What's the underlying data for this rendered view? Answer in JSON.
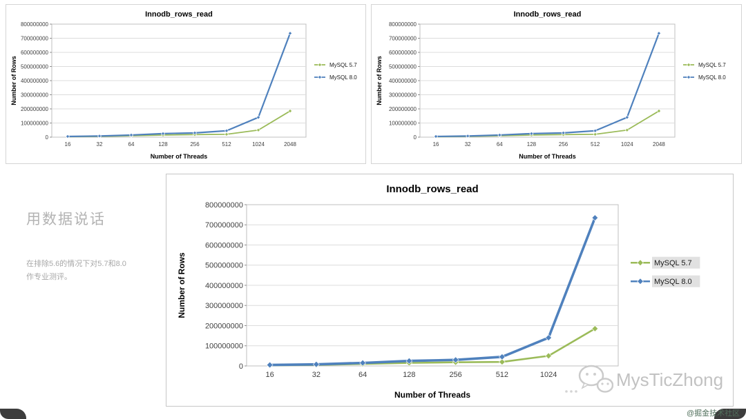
{
  "page_background": "#ffffff",
  "left_panel": {
    "heading": "用数据说话",
    "subtext": [
      "在排除5.6的情况下对5.7和8.0",
      "作专业测评。"
    ]
  },
  "watermark": {
    "name": "MysTicZhong",
    "community_tag": "@掘金技术社区"
  },
  "chart_data": [
    {
      "id": "top-left-small",
      "type": "line",
      "title": "Innodb_rows_read",
      "xlabel": "Number of Threads",
      "ylabel": "Number of Rows",
      "categories": [
        "16",
        "32",
        "64",
        "128",
        "256",
        "512",
        "1024",
        "2048"
      ],
      "ylim": [
        0,
        800000000
      ],
      "ytick_step": 100000000,
      "grid": true,
      "legend_position": "right",
      "series": [
        {
          "name": "MySQL 5.7",
          "color": "#9bbb59",
          "values": [
            3000000,
            5000000,
            10000000,
            15000000,
            18000000,
            20000000,
            50000000,
            185000000
          ]
        },
        {
          "name": "MySQL 8.0",
          "color": "#4f81bd",
          "values": [
            5000000,
            8000000,
            15000000,
            25000000,
            30000000,
            45000000,
            140000000,
            735000000
          ]
        }
      ]
    },
    {
      "id": "top-right-small",
      "type": "line",
      "title": "Innodb_rows_read",
      "xlabel": "Number of Threads",
      "ylabel": "Number of Rows",
      "categories": [
        "16",
        "32",
        "64",
        "128",
        "256",
        "512",
        "1024",
        "2048"
      ],
      "ylim": [
        0,
        800000000
      ],
      "ytick_step": 100000000,
      "grid": true,
      "legend_position": "right",
      "series": [
        {
          "name": "MySQL 5.7",
          "color": "#9bbb59",
          "values": [
            3000000,
            5000000,
            10000000,
            15000000,
            18000000,
            20000000,
            50000000,
            185000000
          ]
        },
        {
          "name": "MySQL 8.0",
          "color": "#4f81bd",
          "values": [
            5000000,
            8000000,
            15000000,
            25000000,
            30000000,
            45000000,
            140000000,
            735000000
          ]
        }
      ]
    },
    {
      "id": "main-large",
      "type": "line",
      "title": "Innodb_rows_read",
      "xlabel": "Number of Threads",
      "ylabel": "Number of Rows",
      "categories": [
        "16",
        "32",
        "64",
        "128",
        "256",
        "512",
        "1024",
        "2048"
      ],
      "ylim": [
        0,
        800000000
      ],
      "ytick_step": 100000000,
      "grid": true,
      "legend_position": "right",
      "series": [
        {
          "name": "MySQL 5.7",
          "color": "#9bbb59",
          "values": [
            3000000,
            5000000,
            10000000,
            15000000,
            18000000,
            20000000,
            50000000,
            185000000
          ]
        },
        {
          "name": "MySQL 8.0",
          "color": "#4f81bd",
          "values": [
            5000000,
            8000000,
            15000000,
            25000000,
            30000000,
            45000000,
            140000000,
            735000000
          ]
        }
      ]
    }
  ]
}
